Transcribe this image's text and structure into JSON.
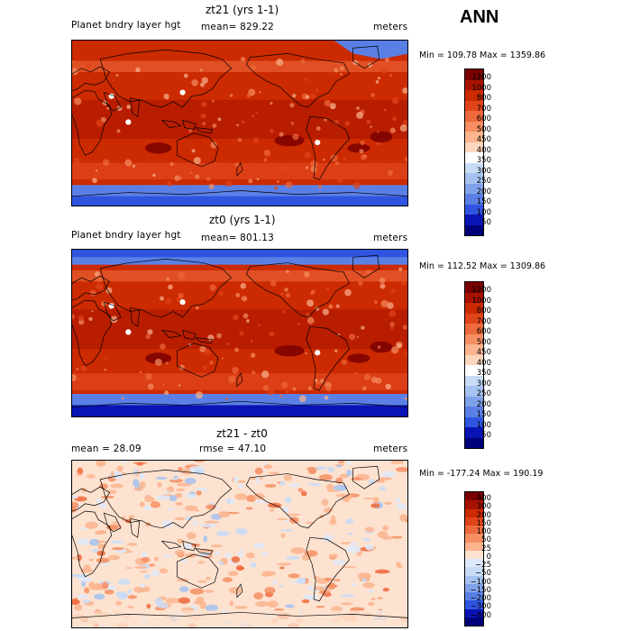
{
  "season": "ANN",
  "panels": [
    {
      "id": "zt21",
      "title": "zt21 (yrs 1-1)",
      "left_label": "Planet bndry layer hgt",
      "center_label": "mean= 829.22",
      "units": "meters",
      "stats": "Min = 109.78 Max = 1359.86",
      "scale": "abs",
      "colorbar": {
        "labels": [
          "1200",
          "1000",
          "800",
          "700",
          "600",
          "500",
          "450",
          "400",
          "350",
          "300",
          "250",
          "200",
          "150",
          "100",
          "50"
        ],
        "colors": [
          "#7a0000",
          "#a81200",
          "#cc2a00",
          "#e0441a",
          "#ee6a3c",
          "#f58e62",
          "#fab48e",
          "#fcd6bd",
          "#ffffff",
          "#c8dcf6",
          "#a5c2f0",
          "#7fa2ea",
          "#5a80e6",
          "#2f55e0",
          "#0a14b4",
          "#00007a"
        ]
      }
    },
    {
      "id": "zt0",
      "title": "zt0 (yrs 1-1)",
      "left_label": "Planet bndry layer hgt",
      "center_label": "mean= 801.13",
      "units": "meters",
      "stats": "Min = 112.52 Max = 1309.86",
      "scale": "abs",
      "colorbar": {
        "labels": [
          "1200",
          "1000",
          "800",
          "700",
          "600",
          "500",
          "450",
          "400",
          "350",
          "300",
          "250",
          "200",
          "150",
          "100",
          "50"
        ],
        "colors": [
          "#7a0000",
          "#a81200",
          "#cc2a00",
          "#e0441a",
          "#ee6a3c",
          "#f58e62",
          "#fab48e",
          "#fcd6bd",
          "#ffffff",
          "#c8dcf6",
          "#a5c2f0",
          "#7fa2ea",
          "#5a80e6",
          "#2f55e0",
          "#0a14b4",
          "#00007a"
        ]
      }
    },
    {
      "id": "diff",
      "title": "zt21 - zt0",
      "left_label": "mean =   28.09",
      "center_label": "rmse =   47.10",
      "units": "meters",
      "stats": "Min = -177.24 Max = 190.19",
      "scale": "diff",
      "colorbar": {
        "labels": [
          "400",
          "300",
          "200",
          "150",
          "100",
          "50",
          "25",
          "0",
          "−25",
          "−50",
          "−100",
          "−150",
          "−200",
          "−300",
          "−400"
        ],
        "colors": [
          "#7a0000",
          "#a81200",
          "#cc2a00",
          "#e0441a",
          "#ee6a3c",
          "#f58e62",
          "#fab48e",
          "#fde2d0",
          "#ddeafb",
          "#c8dcf6",
          "#a5c2f0",
          "#7fa2ea",
          "#5a80e6",
          "#2f55e0",
          "#0a14b4",
          "#00007a"
        ]
      }
    }
  ]
}
